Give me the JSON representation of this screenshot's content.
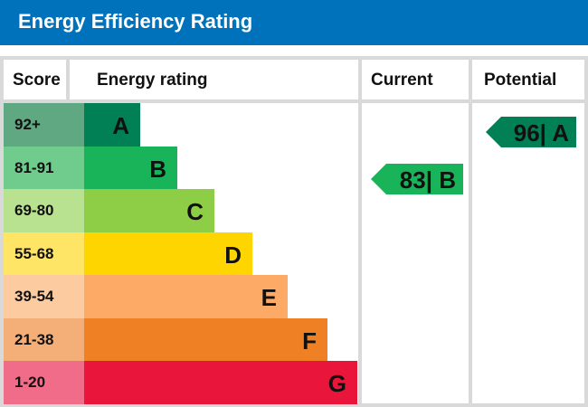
{
  "title": "Energy Efficiency Rating",
  "chart_data": {
    "type": "bar",
    "headers": {
      "score": "Score",
      "rating": "Energy rating",
      "current": "Current",
      "potential": "Potential"
    },
    "bands": [
      {
        "score": "92+",
        "letter": "A",
        "color": "#008054",
        "score_color": "#5fa882"
      },
      {
        "score": "81-91",
        "letter": "B",
        "color": "#19b459",
        "score_color": "#6fcc8c"
      },
      {
        "score": "69-80",
        "letter": "C",
        "color": "#8dce46",
        "score_color": "#b9e290"
      },
      {
        "score": "55-68",
        "letter": "D",
        "color": "#ffd500",
        "score_color": "#ffe566"
      },
      {
        "score": "39-54",
        "letter": "E",
        "color": "#fcaa65",
        "score_color": "#fdcba0"
      },
      {
        "score": "21-38",
        "letter": "F",
        "color": "#ef8023",
        "score_color": "#f4ae78"
      },
      {
        "score": "1-20",
        "letter": "G",
        "color": "#e9153b",
        "score_color": "#f06c88"
      }
    ],
    "current": {
      "value": 83,
      "letter": "B",
      "label": "83| B",
      "color": "#19b459"
    },
    "potential": {
      "value": 96,
      "letter": "A",
      "label": "96| A",
      "color": "#008054"
    }
  }
}
